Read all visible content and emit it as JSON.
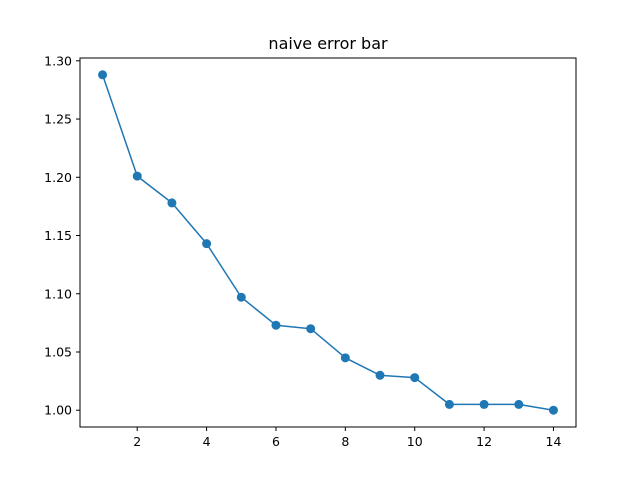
{
  "chart_data": {
    "type": "line",
    "title": "naive error bar",
    "xlabel": "",
    "ylabel": "",
    "x": [
      1,
      2,
      3,
      4,
      5,
      6,
      7,
      8,
      9,
      10,
      11,
      12,
      13,
      14
    ],
    "series": [
      {
        "values": [
          1.288,
          1.201,
          1.178,
          1.143,
          1.097,
          1.073,
          1.07,
          1.045,
          1.03,
          1.028,
          1.005,
          1.005,
          1.005,
          1.0
        ],
        "color": "#1f77b4",
        "marker": "circle"
      }
    ],
    "xlim": [
      0.35,
      14.65
    ],
    "ylim": [
      0.9856,
      1.3024
    ],
    "x_ticks": [
      2,
      4,
      6,
      8,
      10,
      12,
      14
    ],
    "x_tick_labels": [
      "2",
      "4",
      "6",
      "8",
      "10",
      "12",
      "14"
    ],
    "y_ticks": [
      1.0,
      1.05,
      1.1,
      1.15,
      1.2,
      1.25,
      1.3
    ],
    "y_tick_labels": [
      "1.00",
      "1.05",
      "1.10",
      "1.15",
      "1.20",
      "1.25",
      "1.30"
    ],
    "grid": false,
    "legend": "none"
  }
}
